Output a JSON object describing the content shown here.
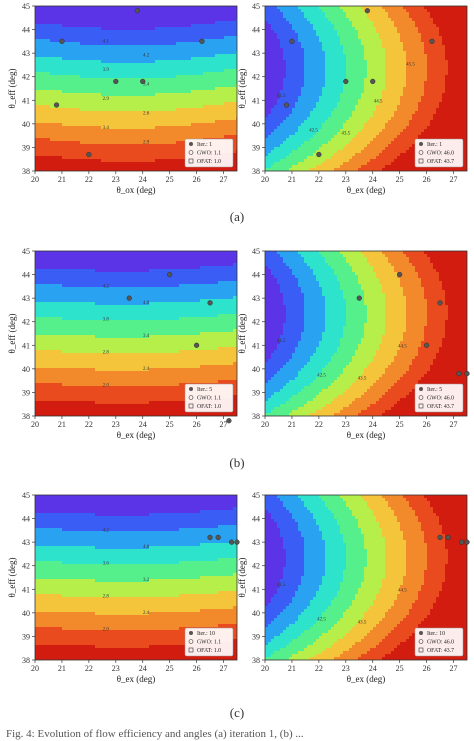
{
  "colors": {
    "levels_left": [
      "#5b34e8",
      "#3a5df5",
      "#2aa2f2",
      "#2ee3cc",
      "#55f08c",
      "#b6ee4a",
      "#f4c43a",
      "#f28a2c",
      "#ea4b1e",
      "#d21c10"
    ],
    "levels_right": [
      "#5b34e8",
      "#3a5df5",
      "#2aa2f2",
      "#2ee3cc",
      "#55f08c",
      "#b6ee4a",
      "#f4c43a",
      "#f28a2c",
      "#ea4b1e",
      "#d21c10"
    ],
    "point": "#555555"
  },
  "captions": [
    "(a)",
    "(b)",
    "(c)"
  ],
  "bottom_text": "Fig. 4: Evolution of flow efficiency and angles (a) iteration 1, (b) ...",
  "chart_data": [
    {
      "type": "contour",
      "panel": "a-left",
      "xlabel": "θ_ox (deg)",
      "ylabel": "θ_eff (deg)",
      "xlim": [
        20,
        27.5
      ],
      "ylim": [
        38,
        45
      ],
      "xticks": [
        "20",
        "21",
        "22",
        "23",
        "24",
        "25",
        "26",
        "27"
      ],
      "yticks": [
        "38",
        "39",
        "40",
        "41",
        "42",
        "43",
        "44",
        "45"
      ],
      "contour_labels": [
        "4.1",
        "4.2",
        "3.9",
        "3.4",
        "2.9",
        "2.6",
        "3.4",
        "2.9"
      ],
      "points": [
        [
          20.8,
          40.8
        ],
        [
          21.0,
          43.5
        ],
        [
          22.0,
          38.7
        ],
        [
          23.0,
          41.8
        ],
        [
          24.0,
          41.8
        ],
        [
          23.8,
          44.8
        ],
        [
          26.2,
          43.5
        ]
      ],
      "legend": [
        "Iter.: 1",
        "GWO: 1.1",
        "OFAT: 1.0"
      ]
    },
    {
      "type": "contour",
      "panel": "a-right",
      "xlabel": "θ_ex (deg)",
      "ylabel": "θ_eff (deg)",
      "xlim": [
        20,
        27.5
      ],
      "ylim": [
        38,
        45
      ],
      "xticks": [
        "20",
        "21",
        "22",
        "23",
        "24",
        "25",
        "26",
        "27"
      ],
      "yticks": [
        "38",
        "39",
        "40",
        "41",
        "42",
        "43",
        "44",
        "45"
      ],
      "contour_labels": [
        "41.5",
        "42.5",
        "43.5",
        "44.5",
        "45.5"
      ],
      "points": [
        [
          20.8,
          40.8
        ],
        [
          21.0,
          43.5
        ],
        [
          22.0,
          38.7
        ],
        [
          23.0,
          41.8
        ],
        [
          24.0,
          41.8
        ],
        [
          23.8,
          44.8
        ],
        [
          26.2,
          43.5
        ]
      ],
      "legend": [
        "Iter.: 1",
        "GWO: 46.0",
        "OFAT: 43.7"
      ]
    },
    {
      "type": "contour",
      "panel": "b-left",
      "xlabel": "θ_ex (deg)",
      "ylabel": "θ_eff (deg)",
      "xlim": [
        20,
        27.5
      ],
      "ylim": [
        38,
        45
      ],
      "xticks": [
        "20",
        "21",
        "22",
        "23",
        "24",
        "25",
        "26",
        "27"
      ],
      "yticks": [
        "38",
        "39",
        "40",
        "41",
        "42",
        "43",
        "44",
        "45"
      ],
      "contour_labels": [
        "4.2",
        "4.0",
        "3.8",
        "3.4",
        "2.8",
        "2.4",
        "2.0"
      ],
      "points": [
        [
          23.5,
          43.0
        ],
        [
          25.0,
          44.0
        ],
        [
          26.0,
          41.0
        ],
        [
          26.5,
          42.8
        ],
        [
          27.2,
          37.8
        ]
      ],
      "legend": [
        "Iter.: 5",
        "GWO: 1.1",
        "OFAT: 1.0"
      ]
    },
    {
      "type": "contour",
      "panel": "b-right",
      "xlabel": "θ_ex (deg)",
      "ylabel": "θ_eff (deg)",
      "xlim": [
        20,
        27.5
      ],
      "ylim": [
        38,
        45
      ],
      "xticks": [
        "20",
        "21",
        "22",
        "23",
        "24",
        "25",
        "26",
        "27"
      ],
      "yticks": [
        "38",
        "39",
        "40",
        "41",
        "42",
        "43",
        "44",
        "45"
      ],
      "contour_labels": [
        "41.5",
        "42.5",
        "43.5",
        "44.5"
      ],
      "points": [
        [
          23.5,
          43.0
        ],
        [
          25.0,
          44.0
        ],
        [
          26.0,
          41.0
        ],
        [
          26.5,
          42.8
        ],
        [
          27.2,
          39.8
        ],
        [
          27.5,
          39.8
        ]
      ],
      "legend": [
        "Iter.: 5",
        "GWO: 46.0",
        "OFAT: 43.7"
      ]
    },
    {
      "type": "contour",
      "panel": "c-left",
      "xlabel": "θ_ex (deg)",
      "ylabel": "θ_eff (deg)",
      "xlim": [
        20,
        27.5
      ],
      "ylim": [
        38,
        45
      ],
      "xticks": [
        "20",
        "21",
        "22",
        "23",
        "24",
        "25",
        "26",
        "27"
      ],
      "yticks": [
        "38",
        "39",
        "40",
        "41",
        "42",
        "43",
        "44",
        "45"
      ],
      "contour_labels": [
        "4.2",
        "4.0",
        "3.6",
        "3.2",
        "2.8",
        "2.4",
        "2.0"
      ],
      "points": [
        [
          26.5,
          43.2
        ],
        [
          26.8,
          43.2
        ],
        [
          27.3,
          43.0
        ],
        [
          27.5,
          43.0
        ]
      ],
      "legend": [
        "Iter.: 10",
        "GWO: 1.1",
        "OFAT: 1.0"
      ]
    },
    {
      "type": "contour",
      "panel": "c-right",
      "xlabel": "θ_ex (deg)",
      "ylabel": "θ_eff (deg)",
      "xlim": [
        20,
        27.5
      ],
      "ylim": [
        38,
        45
      ],
      "xticks": [
        "20",
        "21",
        "22",
        "23",
        "24",
        "25",
        "26",
        "27"
      ],
      "yticks": [
        "38",
        "39",
        "40",
        "41",
        "42",
        "43",
        "44",
        "45"
      ],
      "contour_labels": [
        "41.5",
        "42.5",
        "43.5",
        "44.5"
      ],
      "points": [
        [
          26.5,
          43.2
        ],
        [
          26.8,
          43.2
        ],
        [
          27.3,
          43.0
        ],
        [
          27.5,
          43.0
        ]
      ],
      "legend": [
        "Iter.: 10",
        "GWO: 46.0",
        "OFAT: 43.7"
      ]
    }
  ]
}
